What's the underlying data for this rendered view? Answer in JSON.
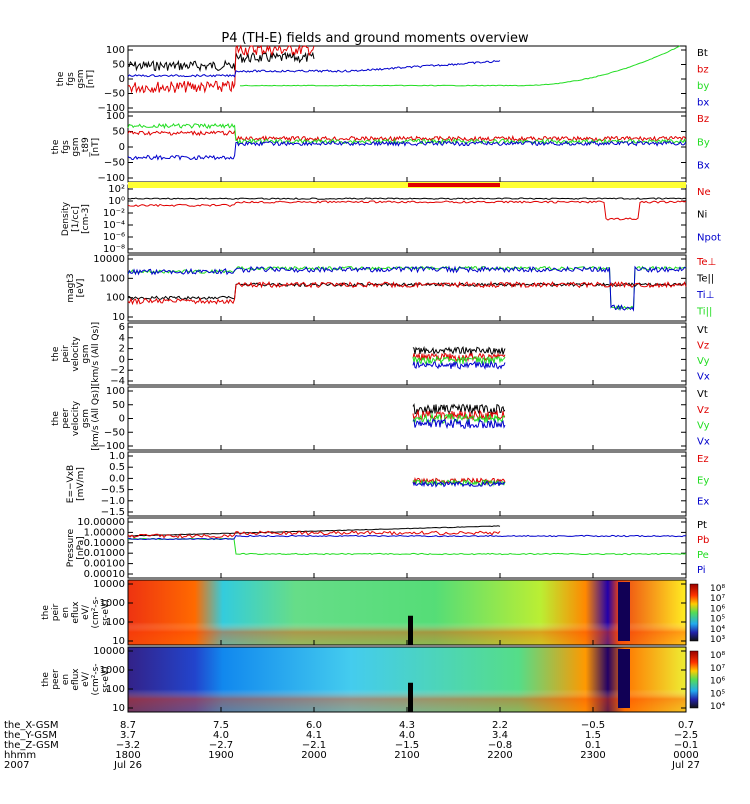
{
  "title": "P4 (TH-E) fields and ground moments overview",
  "colors": {
    "black": "#000000",
    "red": "#e00000",
    "green": "#22dd22",
    "blue": "#0000cc",
    "yellow": "#ffff33"
  },
  "panels": [
    {
      "id": "fgs",
      "ylabel": [
        "the",
        "fgs",
        "gsm",
        "[nT]"
      ],
      "ticks": [
        "100",
        "50",
        "0",
        "−50",
        "−100"
      ],
      "legend": [
        {
          "t": "Bt",
          "c": "black"
        },
        {
          "t": "bz",
          "c": "red"
        },
        {
          "t": "by",
          "c": "green"
        },
        {
          "t": "bx",
          "c": "blue"
        }
      ]
    },
    {
      "id": "fgs2",
      "ylabel": [
        "the",
        "fgs",
        "gsm",
        "_t89",
        "[nT]"
      ],
      "ticks": [
        "100",
        "50",
        "0",
        "−50",
        "−100"
      ],
      "legend": [
        {
          "t": "Bz",
          "c": "red"
        },
        {
          "t": "By",
          "c": "green"
        },
        {
          "t": "Bx",
          "c": "blue"
        }
      ]
    },
    {
      "id": "density",
      "ylabel": [
        "Density",
        "[1/cc]",
        "[cm-3]"
      ],
      "ticks": [
        "10²",
        "10⁰",
        "10⁻²",
        "10⁻⁴",
        "10⁻⁶",
        "10⁻⁸"
      ],
      "legend": [
        {
          "t": "Ne",
          "c": "red"
        },
        {
          "t": "Ni",
          "c": "black"
        },
        {
          "t": "Npot",
          "c": "blue"
        }
      ]
    },
    {
      "id": "temp",
      "ylabel": [
        "magt3",
        "[eV]"
      ],
      "ticks": [
        "10000",
        "1000",
        "100",
        "10"
      ],
      "legend": [
        {
          "t": "Te⊥",
          "c": "red"
        },
        {
          "t": "Te||",
          "c": "black"
        },
        {
          "t": "Ti⊥",
          "c": "blue"
        },
        {
          "t": "Ti||",
          "c": "green"
        }
      ]
    },
    {
      "id": "peirv",
      "ylabel": [
        "the",
        "peir",
        "velocity",
        "gsm",
        "[km/s (All Qs)]"
      ],
      "ticks": [
        "6",
        "4",
        "2",
        "0",
        "−2",
        "−4"
      ],
      "legend": [
        {
          "t": "Vt",
          "c": "black"
        },
        {
          "t": "Vz",
          "c": "red"
        },
        {
          "t": "Vy",
          "c": "green"
        },
        {
          "t": "Vx",
          "c": "blue"
        }
      ]
    },
    {
      "id": "peerv",
      "ylabel": [
        "the",
        "peer",
        "velocity",
        "gsm",
        "[km/s (All Qs)]"
      ],
      "ticks": [
        "100",
        "50",
        "0",
        "−50",
        "−100"
      ],
      "legend": [
        {
          "t": "Vt",
          "c": "black"
        },
        {
          "t": "Vz",
          "c": "red"
        },
        {
          "t": "Vy",
          "c": "green"
        },
        {
          "t": "Vx",
          "c": "blue"
        }
      ]
    },
    {
      "id": "efield",
      "ylabel": [
        "E=−VxB",
        "[mV/m]"
      ],
      "ticks": [
        "1.0",
        "0.5",
        "0.0",
        "−0.5",
        "−1.0",
        "−1.5"
      ],
      "legend": [
        {
          "t": "Ez",
          "c": "red"
        },
        {
          "t": "Ey",
          "c": "green"
        },
        {
          "t": "Ex",
          "c": "blue"
        }
      ]
    },
    {
      "id": "pressure",
      "ylabel": [
        "Pressure",
        "[nPa]"
      ],
      "ticks": [
        "10.00000",
        "1.00000",
        "0.10000",
        "0.01000",
        "0.00100",
        "0.00010"
      ],
      "legend": [
        {
          "t": "Pt",
          "c": "black"
        },
        {
          "t": "Pb",
          "c": "red"
        },
        {
          "t": "Pe",
          "c": "green"
        },
        {
          "t": "Pi",
          "c": "blue"
        }
      ]
    },
    {
      "id": "peirspec",
      "ylabel": [
        "the",
        "peir",
        "en",
        "eflux",
        "eV/",
        "(cm²-s-",
        "sr-eV)"
      ],
      "ticks": [
        "10000",
        "1000",
        "100",
        "10"
      ],
      "colorbar": [
        "10⁸",
        "10⁷",
        "10⁶",
        "10⁵",
        "10⁴",
        "10³"
      ]
    },
    {
      "id": "peerspec",
      "ylabel": [
        "the",
        "peer",
        "en",
        "eflux",
        "eV/",
        "(cm²-s-",
        "sr-eV)"
      ],
      "ticks": [
        "10000",
        "1000",
        "100",
        "10"
      ],
      "colorbar": [
        "10⁸",
        "10⁷",
        "10⁶",
        "10⁵",
        "10⁴"
      ]
    }
  ],
  "axis": {
    "rows": [
      {
        "label": "the_X-GSM",
        "vals": [
          "8.7",
          "7.5",
          "6.0",
          "4.3",
          "2.2",
          "−0.5",
          "0.7"
        ]
      },
      {
        "label": "the_Y-GSM",
        "vals": [
          "3.7",
          "4.0",
          "4.1",
          "4.0",
          "3.4",
          "1.5",
          "−2.5"
        ]
      },
      {
        "label": "the_Z-GSM",
        "vals": [
          "−3.2",
          "−2.7",
          "−2.1",
          "−1.5",
          "−0.8",
          "0.1",
          "−0.1"
        ]
      },
      {
        "label": "hhmm",
        "vals": [
          "1800",
          "1900",
          "2000",
          "2100",
          "2200",
          "2300",
          "0000"
        ]
      },
      {
        "label": "2007",
        "vals": [
          "Jul 26",
          "",
          "",
          "",
          "",
          "",
          "Jul 27"
        ]
      }
    ]
  },
  "chart_data": {
    "type": "line",
    "title": "P4 (TH-E) fields and ground moments overview",
    "x": [
      "1800",
      "1900",
      "2000",
      "2100",
      "2200",
      "2300",
      "0000"
    ],
    "x_date_start": "Jul 26 2007",
    "x_date_end": "Jul 27 2007",
    "series_overview": [
      {
        "panel": "the fgs gsm [nT]",
        "ylim": [
          -100,
          100
        ],
        "names": [
          "Bt",
          "bz",
          "by",
          "bx"
        ]
      },
      {
        "panel": "the fgs gsm _t89 [nT]",
        "ylim": [
          -100,
          100
        ],
        "names": [
          "Bz",
          "By",
          "Bx"
        ]
      },
      {
        "panel": "Density [1/cc] [cm-3]",
        "scale": "log",
        "names": [
          "Ne",
          "Ni",
          "Npot"
        ]
      },
      {
        "panel": "magt3 [eV]",
        "scale": "log",
        "names": [
          "Te⊥",
          "Te||",
          "Ti⊥",
          "Ti||"
        ]
      },
      {
        "panel": "the peir velocity gsm",
        "ylim": [
          -4,
          6
        ],
        "names": [
          "Vt",
          "Vz",
          "Vy",
          "Vx"
        ]
      },
      {
        "panel": "the peer velocity gsm",
        "ylim": [
          -100,
          100
        ],
        "names": [
          "Vt",
          "Vz",
          "Vy",
          "Vx"
        ]
      },
      {
        "panel": "E=-VxB [mV/m]",
        "ylim": [
          -1.5,
          1.0
        ],
        "names": [
          "Ez",
          "Ey",
          "Ex"
        ]
      },
      {
        "panel": "Pressure [nPa]",
        "scale": "log",
        "names": [
          "Pt",
          "Pb",
          "Pe",
          "Pi"
        ]
      },
      {
        "panel": "the peir en eflux",
        "type": "heatmap",
        "scale": "log"
      },
      {
        "panel": "the peer en eflux",
        "type": "heatmap",
        "scale": "log"
      }
    ]
  }
}
